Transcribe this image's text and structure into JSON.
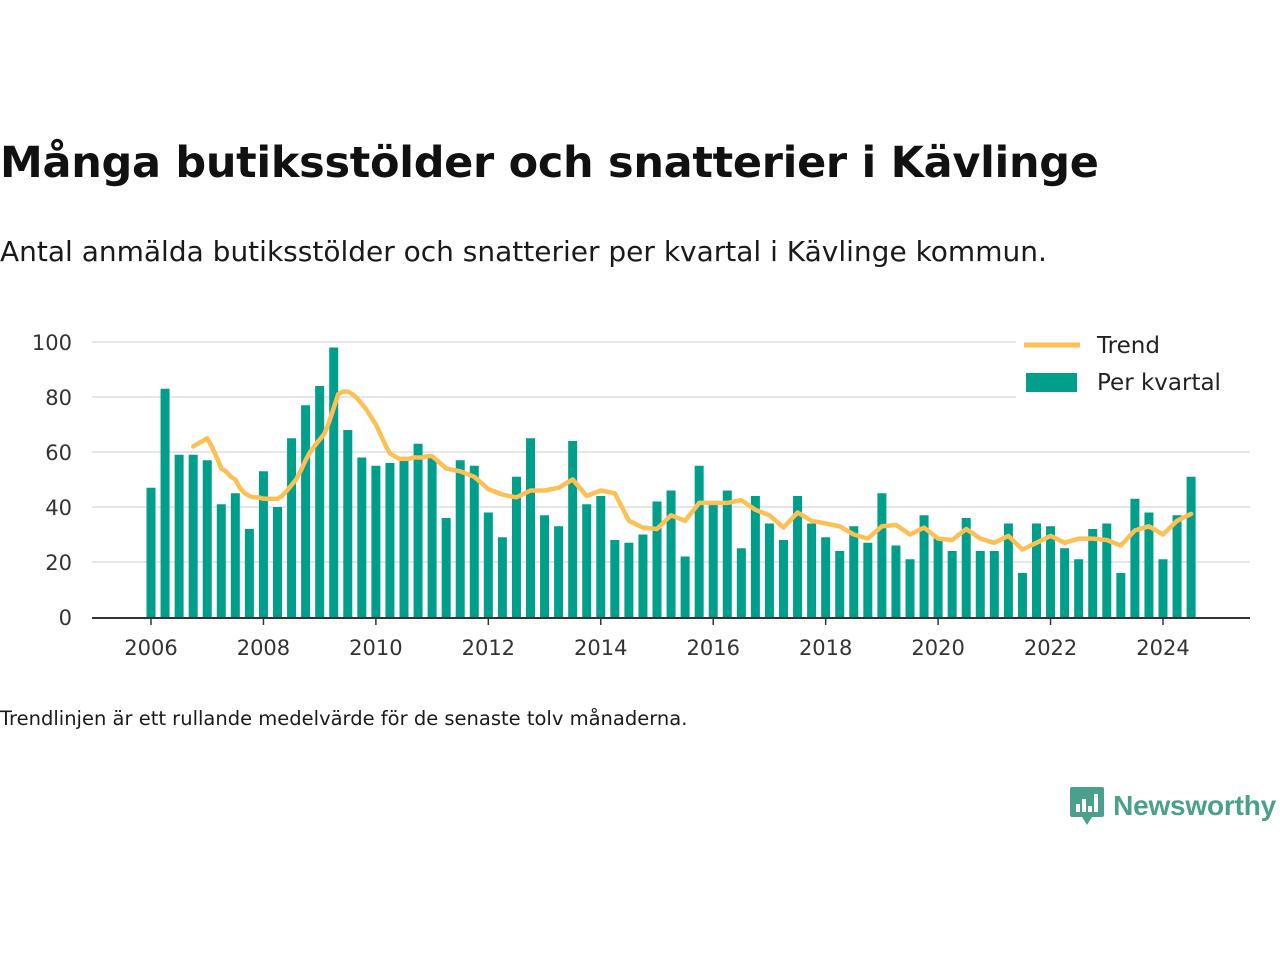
{
  "header": {
    "title": "Många butiksstölder och snatterier i Kävlinge",
    "subtitle": "Antal anmälda butiksstölder och snatterier per kvartal i Kävlinge kommun."
  },
  "footnote": "Trendlinjen är ett rullande medelvärde för de senaste tolv månaderna.",
  "brand": {
    "name": "Newsworthy",
    "icon": "newsworthy-logo-icon",
    "color": "#4aa08c"
  },
  "chart_data": {
    "type": "bar",
    "title": "Många butiksstölder och snatterier i Kävlinge",
    "xlabel": "",
    "ylabel": "",
    "ylim": [
      0,
      100
    ],
    "yticks": [
      0,
      20,
      40,
      60,
      80,
      100
    ],
    "xticks": [
      2006,
      2008,
      2010,
      2012,
      2014,
      2016,
      2018,
      2020,
      2022,
      2024
    ],
    "xtick_labels": [
      "2006",
      "2008",
      "2010",
      "2012",
      "2014",
      "2016",
      "2018",
      "2020",
      "2022",
      "2024"
    ],
    "ytick_labels": [
      "0",
      "20",
      "40",
      "60",
      "80",
      "100"
    ],
    "grid": "horizontal",
    "legend_position": "top-right",
    "colors": {
      "bars": "#009f8c",
      "trend": "#fcc054",
      "grid": "#dddddd",
      "axis": "#333333"
    },
    "categories": [
      "2006 Q1",
      "2006 Q2",
      "2006 Q3",
      "2006 Q4",
      "2007 Q1",
      "2007 Q2",
      "2007 Q3",
      "2007 Q4",
      "2008 Q1",
      "2008 Q2",
      "2008 Q3",
      "2008 Q4",
      "2009 Q1",
      "2009 Q2",
      "2009 Q3",
      "2009 Q4",
      "2010 Q1",
      "2010 Q2",
      "2010 Q3",
      "2010 Q4",
      "2011 Q1",
      "2011 Q2",
      "2011 Q3",
      "2011 Q4",
      "2012 Q1",
      "2012 Q2",
      "2012 Q3",
      "2012 Q4",
      "2013 Q1",
      "2013 Q2",
      "2013 Q3",
      "2013 Q4",
      "2014 Q1",
      "2014 Q2",
      "2014 Q3",
      "2014 Q4",
      "2015 Q1",
      "2015 Q2",
      "2015 Q3",
      "2015 Q4",
      "2016 Q1",
      "2016 Q2",
      "2016 Q3",
      "2016 Q4",
      "2017 Q1",
      "2017 Q2",
      "2017 Q3",
      "2017 Q4",
      "2018 Q1",
      "2018 Q2",
      "2018 Q3",
      "2018 Q4",
      "2019 Q1",
      "2019 Q2",
      "2019 Q3",
      "2019 Q4",
      "2020 Q1",
      "2020 Q2",
      "2020 Q3",
      "2020 Q4",
      "2021 Q1",
      "2021 Q2",
      "2021 Q3",
      "2021 Q4",
      "2022 Q1",
      "2022 Q2",
      "2022 Q3",
      "2022 Q4",
      "2023 Q1",
      "2023 Q2",
      "2023 Q3",
      "2023 Q4",
      "2024 Q1",
      "2024 Q2",
      "2024 Q3"
    ],
    "series": [
      {
        "name": "Per kvartal",
        "type": "bar",
        "values": [
          47,
          83,
          59,
          59,
          57,
          41,
          45,
          32,
          53,
          40,
          65,
          77,
          84,
          98,
          68,
          58,
          55,
          56,
          57,
          63,
          58,
          36,
          57,
          55,
          38,
          29,
          51,
          65,
          37,
          33,
          64,
          41,
          44,
          28,
          27,
          30,
          42,
          46,
          22,
          55,
          42,
          46,
          25,
          44,
          34,
          28,
          44,
          34,
          29,
          24,
          33,
          27,
          45,
          26,
          21,
          37,
          29,
          24,
          36,
          24,
          24,
          34,
          16,
          34,
          33,
          25,
          21,
          32,
          34,
          16,
          43,
          38,
          21,
          37,
          51
        ]
      },
      {
        "name": "Trend",
        "type": "line",
        "x": [
          2006.75,
          2006.83,
          2006.92,
          2007.0,
          2007.08,
          2007.17,
          2007.25,
          2007.33,
          2007.42,
          2007.5,
          2007.58,
          2007.67,
          2007.75,
          2007.83,
          2007.92,
          2008.0,
          2008.08,
          2008.17,
          2008.25,
          2008.33,
          2008.42,
          2008.5,
          2008.58,
          2008.67,
          2008.75,
          2008.83,
          2008.92,
          2009.0,
          2009.08,
          2009.17,
          2009.25,
          2009.33,
          2009.42,
          2009.5,
          2009.58,
          2009.67,
          2009.75,
          2009.83,
          2009.92,
          2010.0,
          2010.08,
          2010.17,
          2010.25,
          2010.33,
          2010.42,
          2010.5,
          2010.58,
          2010.67,
          2010.75,
          2010.83,
          2010.92,
          2011.0,
          2011.25,
          2011.5,
          2011.75,
          2012.0,
          2012.25,
          2012.5,
          2012.75,
          2013.0,
          2013.25,
          2013.5,
          2013.75,
          2014.0,
          2014.25,
          2014.5,
          2014.75,
          2015.0,
          2015.25,
          2015.5,
          2015.75,
          2016.0,
          2016.25,
          2016.5,
          2016.75,
          2017.0,
          2017.25,
          2017.5,
          2017.75,
          2018.0,
          2018.25,
          2018.5,
          2018.75,
          2019.0,
          2019.25,
          2019.5,
          2019.75,
          2020.0,
          2020.25,
          2020.5,
          2020.75,
          2021.0,
          2021.25,
          2021.5,
          2021.75,
          2022.0,
          2022.25,
          2022.5,
          2022.75,
          2023.0,
          2023.25,
          2023.5,
          2023.75,
          2024.0,
          2024.25,
          2024.5
        ],
        "values": [
          62,
          63,
          64,
          65,
          62,
          58,
          54,
          53,
          51,
          50,
          47,
          45,
          44,
          43.5,
          43.5,
          43,
          43,
          43,
          43,
          44,
          46,
          48,
          50,
          53.5,
          57,
          60,
          62.5,
          64.5,
          66.5,
          71,
          76,
          81,
          82,
          82,
          81,
          79.5,
          77.5,
          75.5,
          72.5,
          70,
          66.5,
          62.5,
          59.5,
          58.5,
          57.5,
          57.5,
          57.5,
          58,
          58,
          58,
          58.5,
          58.5,
          54,
          53,
          51,
          46.5,
          44.5,
          43.5,
          46,
          46,
          47,
          50,
          44,
          46,
          45,
          35,
          32.5,
          32,
          37,
          35,
          41.5,
          41.5,
          41.5,
          42.5,
          39,
          37,
          32.5,
          38,
          35,
          34,
          33,
          30,
          28.5,
          33,
          33.5,
          30,
          32.5,
          28.5,
          28,
          32,
          28.5,
          27,
          29.5,
          24.5,
          27,
          29.5,
          27,
          28.5,
          28.5,
          28,
          26,
          31.5,
          33,
          30,
          35,
          37.5
        ]
      }
    ],
    "legend": [
      "Trend",
      "Per kvartal"
    ]
  }
}
